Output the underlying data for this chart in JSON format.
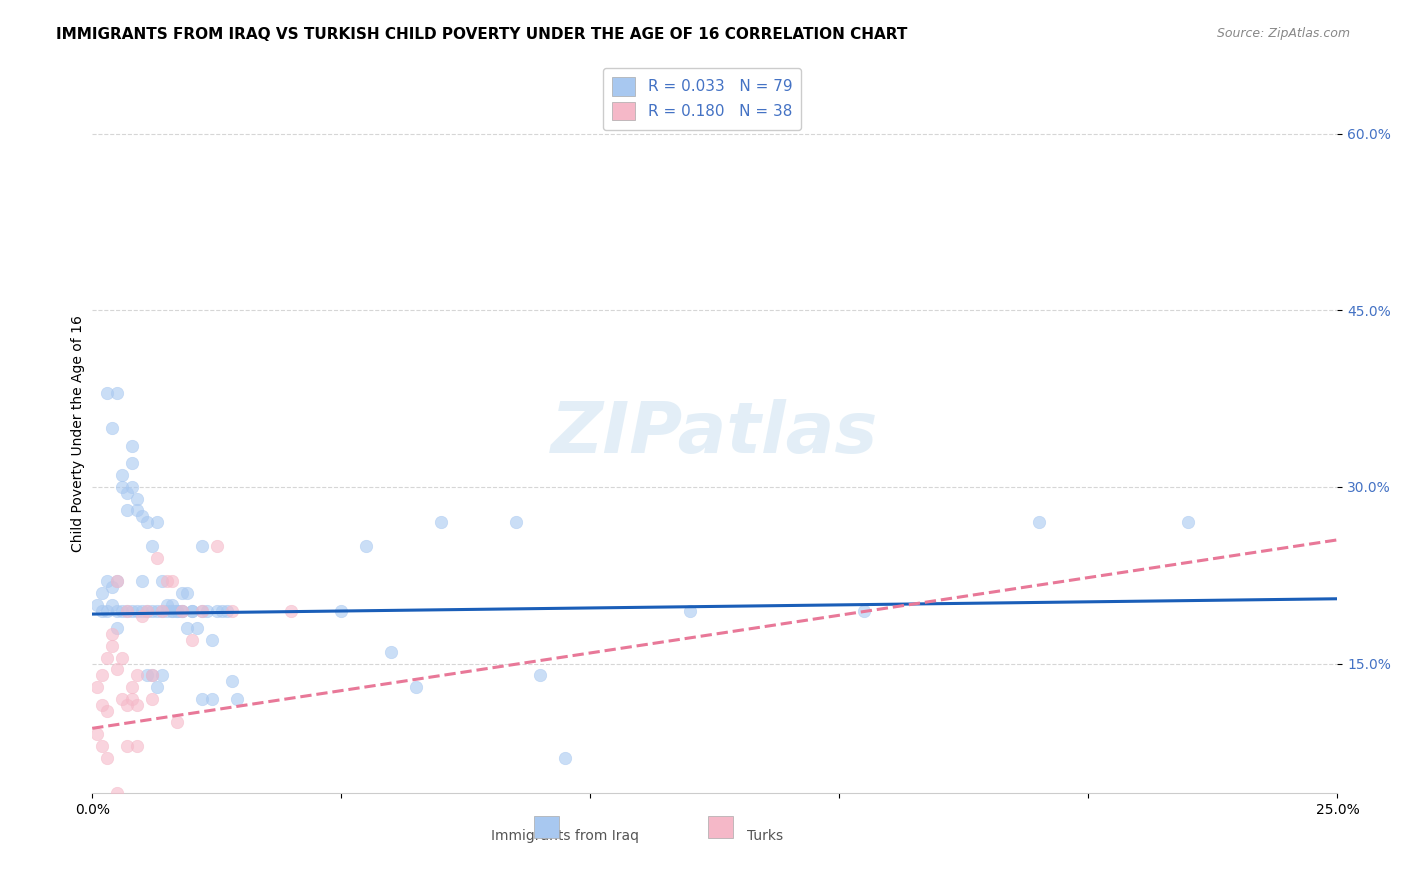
{
  "title": "IMMIGRANTS FROM IRAQ VS TURKISH CHILD POVERTY UNDER THE AGE OF 16 CORRELATION CHART",
  "source": "Source: ZipAtlas.com",
  "xlabel_bottom": "",
  "ylabel": "Child Poverty Under the Age of 16",
  "x_label_bottom_left": "0.0%",
  "x_label_bottom_right": "25.0%",
  "y_ticks": [
    0.15,
    0.3,
    0.45,
    0.6
  ],
  "y_tick_labels": [
    "15.0%",
    "30.0%",
    "45.0%",
    "60.0%"
  ],
  "xlim": [
    0.0,
    0.25
  ],
  "ylim": [
    0.04,
    0.65
  ],
  "legend_entries": [
    {
      "label": "R = 0.033   N = 79",
      "color": "#a8c8f0"
    },
    {
      "label": "R = 0.180   N = 38",
      "color": "#f5b8c8"
    }
  ],
  "legend_label1": "Immigrants from Iraq",
  "legend_label2": "Turks",
  "watermark": "ZIPatlas",
  "blue_scatter_x": [
    0.001,
    0.002,
    0.002,
    0.003,
    0.003,
    0.004,
    0.004,
    0.005,
    0.005,
    0.005,
    0.006,
    0.006,
    0.007,
    0.007,
    0.008,
    0.008,
    0.008,
    0.009,
    0.009,
    0.01,
    0.01,
    0.011,
    0.011,
    0.012,
    0.012,
    0.013,
    0.013,
    0.014,
    0.014,
    0.015,
    0.015,
    0.016,
    0.016,
    0.017,
    0.017,
    0.018,
    0.018,
    0.019,
    0.019,
    0.02,
    0.021,
    0.022,
    0.022,
    0.023,
    0.024,
    0.025,
    0.026,
    0.027,
    0.028,
    0.029,
    0.003,
    0.004,
    0.005,
    0.006,
    0.007,
    0.008,
    0.009,
    0.01,
    0.011,
    0.012,
    0.013,
    0.014,
    0.016,
    0.018,
    0.02,
    0.022,
    0.024,
    0.05,
    0.055,
    0.06,
    0.065,
    0.07,
    0.085,
    0.09,
    0.095,
    0.12,
    0.155,
    0.19,
    0.22
  ],
  "blue_scatter_y": [
    0.2,
    0.21,
    0.195,
    0.195,
    0.22,
    0.215,
    0.2,
    0.18,
    0.195,
    0.22,
    0.3,
    0.31,
    0.295,
    0.28,
    0.32,
    0.335,
    0.3,
    0.29,
    0.28,
    0.275,
    0.195,
    0.27,
    0.195,
    0.195,
    0.25,
    0.27,
    0.195,
    0.195,
    0.22,
    0.195,
    0.2,
    0.195,
    0.2,
    0.195,
    0.195,
    0.21,
    0.195,
    0.21,
    0.18,
    0.195,
    0.18,
    0.25,
    0.195,
    0.195,
    0.17,
    0.195,
    0.195,
    0.195,
    0.135,
    0.12,
    0.38,
    0.35,
    0.38,
    0.195,
    0.195,
    0.195,
    0.195,
    0.22,
    0.14,
    0.14,
    0.13,
    0.14,
    0.195,
    0.195,
    0.195,
    0.12,
    0.12,
    0.195,
    0.25,
    0.16,
    0.13,
    0.27,
    0.27,
    0.14,
    0.07,
    0.195,
    0.195,
    0.27,
    0.27
  ],
  "pink_scatter_x": [
    0.001,
    0.002,
    0.002,
    0.003,
    0.003,
    0.004,
    0.004,
    0.005,
    0.005,
    0.006,
    0.006,
    0.007,
    0.007,
    0.008,
    0.008,
    0.009,
    0.009,
    0.01,
    0.011,
    0.012,
    0.013,
    0.014,
    0.015,
    0.016,
    0.017,
    0.018,
    0.02,
    0.022,
    0.025,
    0.028,
    0.001,
    0.002,
    0.003,
    0.005,
    0.007,
    0.009,
    0.012,
    0.04
  ],
  "pink_scatter_y": [
    0.13,
    0.115,
    0.14,
    0.11,
    0.155,
    0.165,
    0.175,
    0.22,
    0.145,
    0.155,
    0.12,
    0.115,
    0.195,
    0.12,
    0.13,
    0.115,
    0.14,
    0.19,
    0.195,
    0.14,
    0.24,
    0.195,
    0.22,
    0.22,
    0.1,
    0.195,
    0.17,
    0.195,
    0.25,
    0.195,
    0.09,
    0.08,
    0.07,
    0.04,
    0.08,
    0.08,
    0.12,
    0.195
  ],
  "blue_line_x": [
    0.0,
    0.25
  ],
  "blue_line_y": [
    0.192,
    0.205
  ],
  "pink_line_x": [
    0.0,
    0.25
  ],
  "pink_line_y": [
    0.095,
    0.255
  ],
  "blue_dot_color": "#a8c8f0",
  "pink_dot_color": "#f5b8c8",
  "blue_line_color": "#1a5eb8",
  "pink_line_color": "#e87898",
  "grid_color": "#cccccc",
  "title_fontsize": 11,
  "axis_label_fontsize": 10,
  "tick_fontsize": 10,
  "dot_size": 80,
  "dot_alpha": 0.6,
  "dot_edgewidth": 0.5
}
